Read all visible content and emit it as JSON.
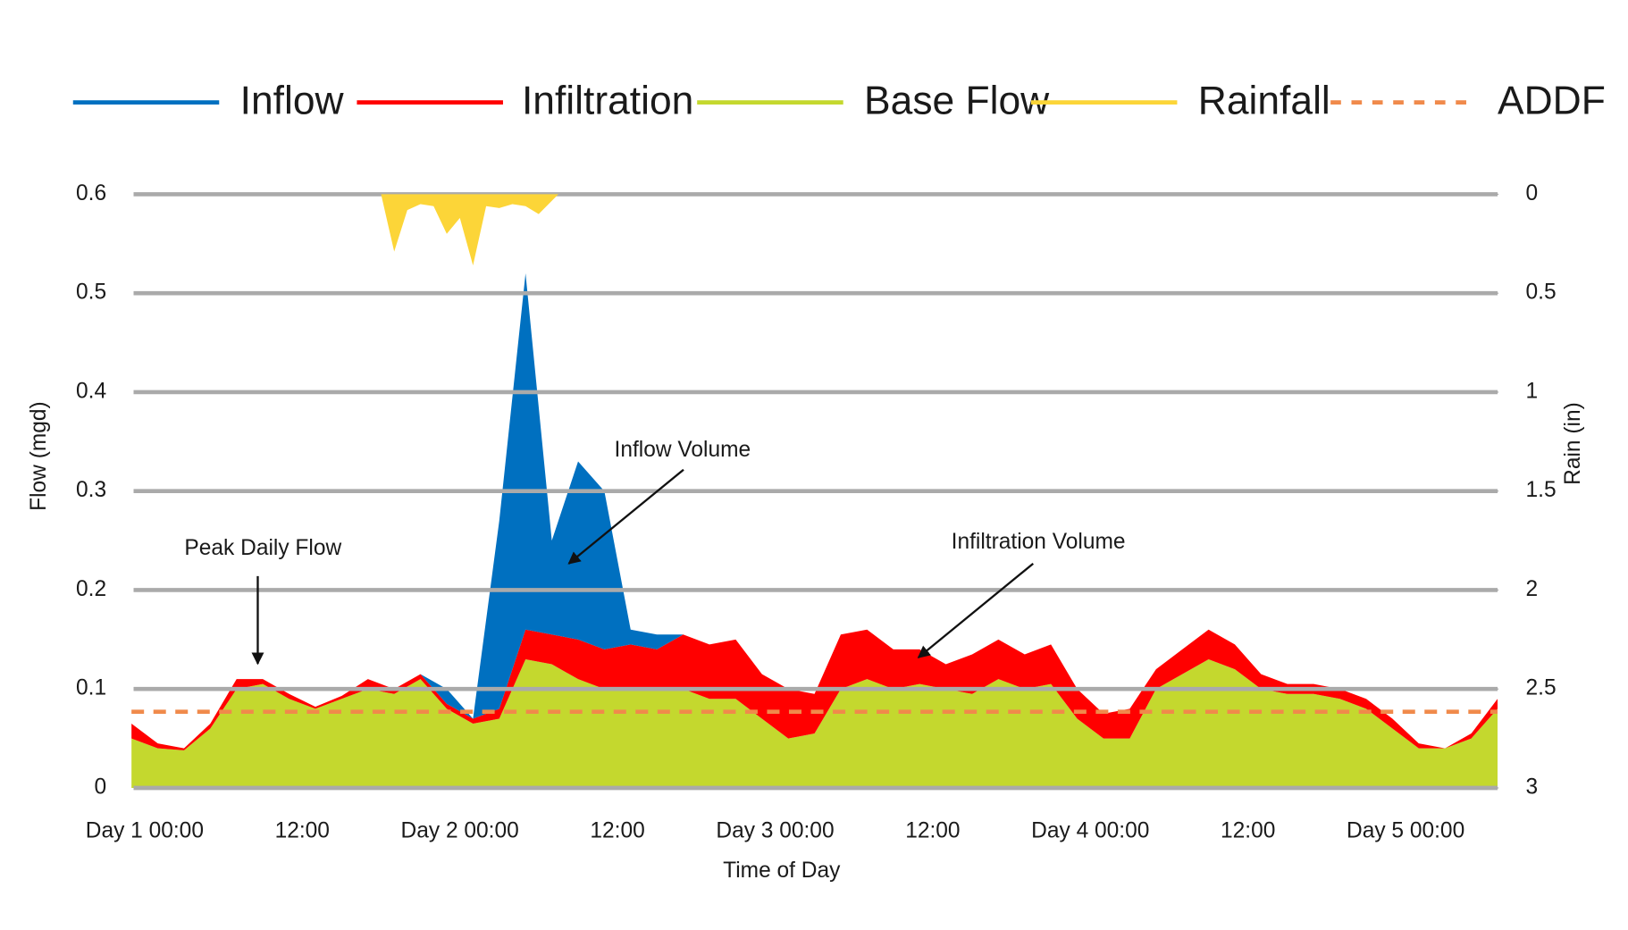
{
  "chart_data": {
    "type": "stacked-area",
    "x_label": "Time of Day",
    "y_label": "Flow (mgd)",
    "y2_label": "Rain (in)",
    "x": [
      -1,
      1,
      3,
      5,
      7,
      9,
      11,
      13,
      15,
      17,
      19,
      21,
      23,
      25,
      27,
      29,
      31,
      33,
      35,
      37,
      39,
      41,
      43,
      45,
      47,
      49,
      51,
      53,
      55,
      57,
      59,
      61,
      63,
      65,
      67,
      69,
      71,
      73,
      75,
      77,
      79,
      81,
      83,
      85,
      87,
      89,
      91,
      93,
      95,
      97,
      99,
      101,
      103
    ],
    "xlim": [
      -1,
      103
    ],
    "xticks": [
      {
        "value": 0,
        "label": "Day 1  00:00"
      },
      {
        "value": 12,
        "label": "12:00"
      },
      {
        "value": 24,
        "label": "Day 2  00:00"
      },
      {
        "value": 36,
        "label": "12:00"
      },
      {
        "value": 48,
        "label": "Day 3  00:00"
      },
      {
        "value": 60,
        "label": "12:00"
      },
      {
        "value": 72,
        "label": "Day 4  00:00"
      },
      {
        "value": 84,
        "label": "12:00"
      },
      {
        "value": 96,
        "label": "Day 5  00:00"
      }
    ],
    "ylim": [
      0,
      0.6
    ],
    "yticks": [
      0,
      0.1,
      0.2,
      0.3,
      0.4,
      0.5,
      0.6
    ],
    "y2lim": [
      0,
      3
    ],
    "y2ticks": [
      0,
      0.5,
      1,
      1.5,
      2,
      2.5,
      3
    ],
    "y2_inverted": true,
    "grid": true,
    "legend": "top",
    "series": [
      {
        "name": "Inflow",
        "color": "#0070c0",
        "stack": true,
        "values": [
          0,
          0,
          0,
          0,
          0,
          0,
          0,
          0,
          0,
          0,
          0,
          0,
          0.015,
          0,
          0.19,
          0.36,
          0.095,
          0.18,
          0.16,
          0.015,
          0.015,
          0,
          0,
          0,
          0,
          0,
          0,
          0,
          0,
          0,
          0,
          0,
          0,
          0,
          0,
          0,
          0,
          0,
          0,
          0,
          0,
          0,
          0,
          0,
          0,
          0,
          0,
          0,
          0,
          0,
          0,
          0,
          0
        ]
      },
      {
        "name": "Infiltration",
        "color": "#ff0000",
        "stack": true,
        "values": [
          0.015,
          0.005,
          0.002,
          0.005,
          0.01,
          0.005,
          0.005,
          0.002,
          0.003,
          0.01,
          0.005,
          0.005,
          0.005,
          0.005,
          0.01,
          0.03,
          0.03,
          0.04,
          0.04,
          0.045,
          0.04,
          0.055,
          0.055,
          0.06,
          0.045,
          0.05,
          0.04,
          0.055,
          0.05,
          0.04,
          0.035,
          0.025,
          0.04,
          0.04,
          0.035,
          0.04,
          0.03,
          0.025,
          0.03,
          0.02,
          0.025,
          0.03,
          0.025,
          0.015,
          0.01,
          0.01,
          0.01,
          0.01,
          0.01,
          0.005,
          0,
          0.005,
          0.01
        ]
      },
      {
        "name": "Base Flow",
        "color": "#c4d82e",
        "stack": true,
        "values": [
          0.05,
          0.04,
          0.038,
          0.06,
          0.1,
          0.105,
          0.09,
          0.08,
          0.09,
          0.1,
          0.095,
          0.11,
          0.08,
          0.065,
          0.07,
          0.13,
          0.125,
          0.11,
          0.1,
          0.1,
          0.1,
          0.1,
          0.09,
          0.09,
          0.07,
          0.05,
          0.055,
          0.1,
          0.11,
          0.1,
          0.105,
          0.1,
          0.095,
          0.11,
          0.1,
          0.105,
          0.07,
          0.05,
          0.05,
          0.1,
          0.115,
          0.13,
          0.12,
          0.1,
          0.095,
          0.095,
          0.09,
          0.08,
          0.06,
          0.04,
          0.04,
          0.05,
          0.08
        ]
      },
      {
        "name": "Rainfall",
        "color": "#fcd538",
        "axis": "y2",
        "x": [
          18,
          19,
          20,
          21,
          22,
          23,
          24,
          25,
          26,
          27,
          28,
          29,
          30,
          31.5
        ],
        "values": [
          0,
          0.29,
          0.08,
          0.05,
          0.06,
          0.2,
          0.12,
          0.36,
          0.06,
          0.07,
          0.05,
          0.06,
          0.1,
          0
        ]
      },
      {
        "name": "ADDF",
        "color": "#f08a4b",
        "style": "dashed",
        "value": 0.077
      }
    ],
    "annotations": [
      {
        "text": "Peak Daily Flow"
      },
      {
        "text": "Inflow Volume"
      },
      {
        "text": "Infiltration Volume"
      }
    ]
  }
}
